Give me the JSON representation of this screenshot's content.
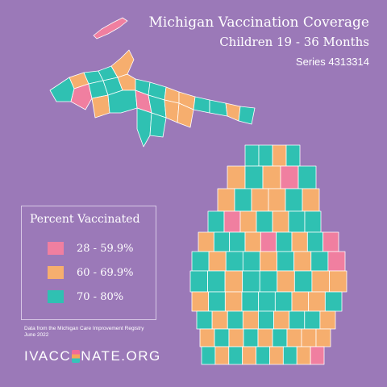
{
  "title": {
    "line1": "Michigan Vaccination Coverage",
    "line2": "Children 19 - 36 Months",
    "line3": "Series 4313314"
  },
  "colors": {
    "background": "#9b79b8",
    "low": "#f07fa0",
    "mid": "#f6ae6e",
    "high": "#2fc1b2",
    "border": "#ffffff"
  },
  "legend": {
    "title": "Percent Vaccinated",
    "items": [
      {
        "label": "28 - 59.9%",
        "category": "low",
        "color": "#f07fa0"
      },
      {
        "label": "60 - 69.9%",
        "category": "mid",
        "color": "#f6ae6e"
      },
      {
        "label": "70 - 80%",
        "category": "high",
        "color": "#2fc1b2"
      }
    ]
  },
  "source": {
    "line1": "Data from the Michigan Care Improvement Registry",
    "line2": "June 2022"
  },
  "logo": {
    "prefix": "IVACC",
    "suffix": "NATE.ORG"
  },
  "map": {
    "upper_peninsula": [
      "high",
      "mid",
      "high",
      "high",
      "mid",
      "low",
      "high",
      "high",
      "mid",
      "high",
      "high",
      "mid",
      "mid",
      "high",
      "high",
      "mid",
      "high",
      "mid",
      "high",
      "low",
      "high",
      "mid",
      "high",
      "high",
      "mid"
    ],
    "isle_royale": "low",
    "lower_peninsula": [
      [
        "high",
        "high",
        "mid",
        "high"
      ],
      [
        "mid",
        "high",
        "mid",
        "low",
        "high"
      ],
      [
        "mid",
        "high",
        "mid",
        "mid",
        "high",
        "mid"
      ],
      [
        "high",
        "low",
        "mid",
        "high",
        "mid",
        "high",
        "high"
      ],
      [
        "mid",
        "high",
        "high",
        "mid",
        "low",
        "high",
        "mid",
        "high",
        "low"
      ],
      [
        "high",
        "mid",
        "high",
        "high",
        "mid",
        "high",
        "mid",
        "high",
        "low"
      ],
      [
        "high",
        "high",
        "mid",
        "high",
        "high",
        "mid",
        "high",
        "mid",
        "mid"
      ],
      [
        "mid",
        "high",
        "mid",
        "high",
        "high",
        "high",
        "mid",
        "mid",
        "high"
      ],
      [
        "high",
        "mid",
        "high",
        "mid",
        "high",
        "mid",
        "high",
        "high",
        "mid"
      ],
      [
        "mid",
        "high",
        "mid",
        "high",
        "mid",
        "high",
        "mid",
        "mid",
        "mid"
      ],
      [
        "high",
        "mid",
        "high",
        "mid",
        "high",
        "mid",
        "high",
        "mid",
        "low"
      ]
    ]
  }
}
